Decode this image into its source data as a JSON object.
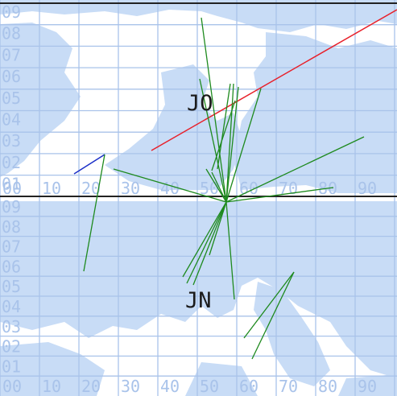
{
  "map": {
    "upper_square": "JO",
    "lower_square": "JN",
    "x_ticks_mid": [
      "00",
      "10",
      "20",
      "30",
      "40",
      "50",
      "60",
      "70",
      "80",
      "90"
    ],
    "x_ticks_bottom": [
      "00",
      "10",
      "20",
      "30",
      "40",
      "50",
      "60",
      "70",
      "80",
      "90"
    ],
    "y_ticks_upper": [
      "09",
      "08",
      "07",
      "06",
      "05",
      "04",
      "03",
      "02",
      "01"
    ],
    "y_ticks_lower": [
      "09",
      "08",
      "07",
      "06",
      "05",
      "04",
      "03",
      "02",
      "01"
    ],
    "colors": {
      "sea": "#ffffff",
      "land": "#c8dcf6",
      "grid": "#a9c3ea",
      "square_border": "#111111",
      "contacts": "#1e8a1e",
      "red_path": "#e8202a",
      "blue_path": "#1b2fc8"
    }
  }
}
